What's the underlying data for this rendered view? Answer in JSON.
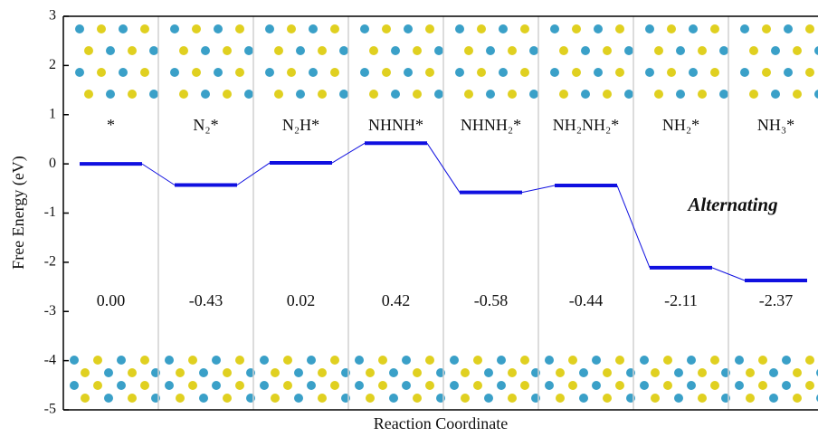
{
  "chart_data": {
    "type": "energy-levels",
    "ylabel": "Free Energy (eV)",
    "xlabel": "Reaction Coordinate",
    "annotation": "Alternating",
    "categories": [
      "*",
      "N₂*",
      "N₂H*",
      "NHNH*",
      "NHNH₂*",
      "NH₂NH₂*",
      "NH₂*",
      "NH₃*"
    ],
    "values": [
      0,
      -0.43,
      0.02,
      0.42,
      -0.58,
      -0.44,
      -2.11,
      -2.37
    ],
    "value_labels": [
      "0.00",
      "-0.43",
      "0.02",
      "0.42",
      "-0.58",
      "-0.44",
      "-2.11",
      "-2.37"
    ],
    "color": "#1010e0",
    "ylim": [
      -5,
      3
    ],
    "yticks": [
      -5,
      -4,
      -3,
      -2,
      -1,
      0,
      1,
      2,
      3
    ]
  }
}
